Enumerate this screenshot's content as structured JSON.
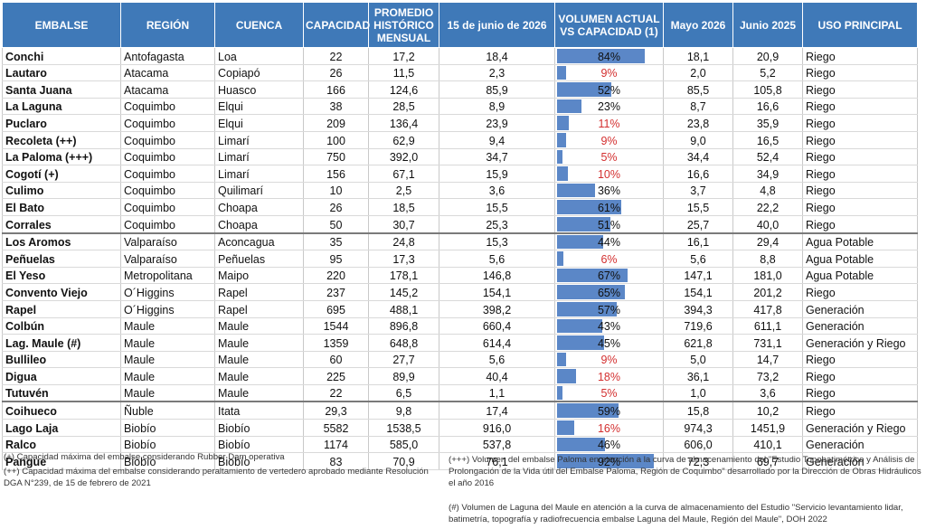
{
  "headers": [
    "EMBALSE",
    "REGIÓN",
    "CUENCA",
    "CAPACIDAD",
    "PROMEDIO HISTÓRICO MENSUAL",
    "15 de junio de 2026",
    "VOLUMEN ACTUAL VS CAPACIDAD (1)",
    "Mayo 2026",
    "Junio 2025",
    "USO PRINCIPAL"
  ],
  "colors": {
    "header": "#3f79b8",
    "bar": "#5b87c7",
    "low_pct": "#d32f2f"
  },
  "groups": [
    [
      {
        "name": "Conchi",
        "region": "Antofagasta",
        "cuenca": "Loa",
        "cap": "22",
        "prom": "17,2",
        "jun15": "18,4",
        "pct": "84%",
        "pct_value": 84,
        "mayo": "18,1",
        "jun25": "20,9",
        "uso": "Riego"
      },
      {
        "name": "Lautaro",
        "region": "Atacama",
        "cuenca": "Copiapó",
        "cap": "26",
        "prom": "11,5",
        "jun15": "2,3",
        "pct": "9%",
        "pct_value": 9,
        "mayo": "2,0",
        "jun25": "5,2",
        "uso": "Riego"
      },
      {
        "name": "Santa Juana",
        "region": "Atacama",
        "cuenca": "Huasco",
        "cap": "166",
        "prom": "124,6",
        "jun15": "85,9",
        "pct": "52%",
        "pct_value": 52,
        "mayo": "85,5",
        "jun25": "105,8",
        "uso": "Riego"
      },
      {
        "name": "La Laguna",
        "region": "Coquimbo",
        "cuenca": "Elqui",
        "cap": "38",
        "prom": "28,5",
        "jun15": "8,9",
        "pct": "23%",
        "pct_value": 23,
        "mayo": "8,7",
        "jun25": "16,6",
        "uso": "Riego"
      },
      {
        "name": "Puclaro",
        "region": "Coquimbo",
        "cuenca": "Elqui",
        "cap": "209",
        "prom": "136,4",
        "jun15": "23,9",
        "pct": "11%",
        "pct_value": 11,
        "mayo": "23,8",
        "jun25": "35,9",
        "uso": "Riego"
      },
      {
        "name": "Recoleta (++)",
        "region": "Coquimbo",
        "cuenca": "Limarí",
        "cap": "100",
        "prom": "62,9",
        "jun15": "9,4",
        "pct": "9%",
        "pct_value": 9,
        "mayo": "9,0",
        "jun25": "16,5",
        "uso": "Riego"
      },
      {
        "name": "La Paloma (+++)",
        "region": "Coquimbo",
        "cuenca": "Limarí",
        "cap": "750",
        "prom": "392,0",
        "jun15": "34,7",
        "pct": "5%",
        "pct_value": 5,
        "mayo": "34,4",
        "jun25": "52,4",
        "uso": "Riego"
      },
      {
        "name": "Cogotí (+)",
        "region": "Coquimbo",
        "cuenca": "Limarí",
        "cap": "156",
        "prom": "67,1",
        "jun15": "15,9",
        "pct": "10%",
        "pct_value": 10,
        "mayo": "16,6",
        "jun25": "34,9",
        "uso": "Riego"
      },
      {
        "name": "Culimo",
        "region": "Coquimbo",
        "cuenca": "Quilimarí",
        "cap": "10",
        "prom": "2,5",
        "jun15": "3,6",
        "pct": "36%",
        "pct_value": 36,
        "mayo": "3,7",
        "jun25": "4,8",
        "uso": "Riego"
      },
      {
        "name": "El Bato",
        "region": "Coquimbo",
        "cuenca": "Choapa",
        "cap": "26",
        "prom": "18,5",
        "jun15": "15,5",
        "pct": "61%",
        "pct_value": 61,
        "mayo": "15,5",
        "jun25": "22,2",
        "uso": "Riego"
      },
      {
        "name": "Corrales",
        "region": "Coquimbo",
        "cuenca": "Choapa",
        "cap": "50",
        "prom": "30,7",
        "jun15": "25,3",
        "pct": "51%",
        "pct_value": 51,
        "mayo": "25,7",
        "jun25": "40,0",
        "uso": "Riego"
      }
    ],
    [
      {
        "name": "Los Aromos",
        "region": "Valparaíso",
        "cuenca": "Aconcagua",
        "cap": "35",
        "prom": "24,8",
        "jun15": "15,3",
        "pct": "44%",
        "pct_value": 44,
        "mayo": "16,1",
        "jun25": "29,4",
        "uso": "Agua Potable"
      },
      {
        "name": "Peñuelas",
        "region": "Valparaíso",
        "cuenca": "Peñuelas",
        "cap": "95",
        "prom": "17,3",
        "jun15": "5,6",
        "pct": "6%",
        "pct_value": 6,
        "mayo": "5,6",
        "jun25": "8,8",
        "uso": "Agua Potable"
      },
      {
        "name": "El Yeso",
        "region": "Metropolitana",
        "cuenca": "Maipo",
        "cap": "220",
        "prom": "178,1",
        "jun15": "146,8",
        "pct": "67%",
        "pct_value": 67,
        "mayo": "147,1",
        "jun25": "181,0",
        "uso": "Agua Potable"
      },
      {
        "name": "Convento Viejo",
        "region": "O´Higgins",
        "cuenca": "Rapel",
        "cap": "237",
        "prom": "145,2",
        "jun15": "154,1",
        "pct": "65%",
        "pct_value": 65,
        "mayo": "154,1",
        "jun25": "201,2",
        "uso": "Riego"
      },
      {
        "name": "Rapel",
        "region": "O´Higgins",
        "cuenca": "Rapel",
        "cap": "695",
        "prom": "488,1",
        "jun15": "398,2",
        "pct": "57%",
        "pct_value": 57,
        "mayo": "394,3",
        "jun25": "417,8",
        "uso": "Generación"
      },
      {
        "name": "Colbún",
        "region": "Maule",
        "cuenca": "Maule",
        "cap": "1544",
        "prom": "896,8",
        "jun15": "660,4",
        "pct": "43%",
        "pct_value": 43,
        "mayo": "719,6",
        "jun25": "611,1",
        "uso": "Generación"
      },
      {
        "name": "Lag. Maule (#)",
        "region": "Maule",
        "cuenca": "Maule",
        "cap": "1359",
        "prom": "648,8",
        "jun15": "614,4",
        "pct": "45%",
        "pct_value": 45,
        "mayo": "621,8",
        "jun25": "731,1",
        "uso": "Generación y Riego"
      },
      {
        "name": "Bullileo",
        "region": "Maule",
        "cuenca": "Maule",
        "cap": "60",
        "prom": "27,7",
        "jun15": "5,6",
        "pct": "9%",
        "pct_value": 9,
        "mayo": "5,0",
        "jun25": "14,7",
        "uso": "Riego"
      },
      {
        "name": "Digua",
        "region": "Maule",
        "cuenca": "Maule",
        "cap": "225",
        "prom": "89,9",
        "jun15": "40,4",
        "pct": "18%",
        "pct_value": 18,
        "mayo": "36,1",
        "jun25": "73,2",
        "uso": "Riego"
      },
      {
        "name": "Tutuvén",
        "region": "Maule",
        "cuenca": "Maule",
        "cap": "22",
        "prom": "6,5",
        "jun15": "1,1",
        "pct": "5%",
        "pct_value": 5,
        "mayo": "1,0",
        "jun25": "3,6",
        "uso": "Riego"
      }
    ],
    [
      {
        "name": "Coihueco",
        "region": "Ñuble",
        "cuenca": "Itata",
        "cap": "29,3",
        "prom": "9,8",
        "jun15": "17,4",
        "pct": "59%",
        "pct_value": 59,
        "mayo": "15,8",
        "jun25": "10,2",
        "uso": "Riego"
      },
      {
        "name": "Lago Laja",
        "region": "Biobío",
        "cuenca": "Biobío",
        "cap": "5582",
        "prom": "1538,5",
        "jun15": "916,0",
        "pct": "16%",
        "pct_value": 16,
        "mayo": "974,3",
        "jun25": "1451,9",
        "uso": "Generación y Riego"
      },
      {
        "name": "Ralco",
        "region": "Biobío",
        "cuenca": "Biobío",
        "cap": "1174",
        "prom": "585,0",
        "jun15": "537,8",
        "pct": "46%",
        "pct_value": 46,
        "mayo": "606,0",
        "jun25": "410,1",
        "uso": "Generación"
      },
      {
        "name": "Pangue",
        "region": "Biobío",
        "cuenca": "Biobío",
        "cap": "83",
        "prom": "70,9",
        "jun15": "76,1",
        "pct": "92%",
        "pct_value": 92,
        "mayo": "72,3",
        "jun25": "69,7",
        "uso": "Generación"
      }
    ]
  ],
  "notes": {
    "n1": "(+) Capacidad máxima del embalse considerando Rubber Dam operativa",
    "n2": "(++) Capacidad máxima del embalse considerando peraltamiento de vertedero  aprobado mediante Resolución DGA N°239, de 15 de febrero de 2021",
    "n3": "(+++) Volumen del embalse Paloma en atención a la curva de almacenamiento del \"Estudio Topobatimétrico y Análisis de Prolongación de la Vida útil del Embalse Paloma, Región de Coquimbo\" desarrollado por la Dirección de Obras Hidráulicos el año 2016",
    "n4": "(#) Volumen de Laguna del Maule en atención a la curva de almacenamiento del Estudio \"Servicio levantamiento lidar, batimetría, topografía y radiofrecuencia embalse Laguna del Maule, Región del Maule\", DOH 2022"
  }
}
